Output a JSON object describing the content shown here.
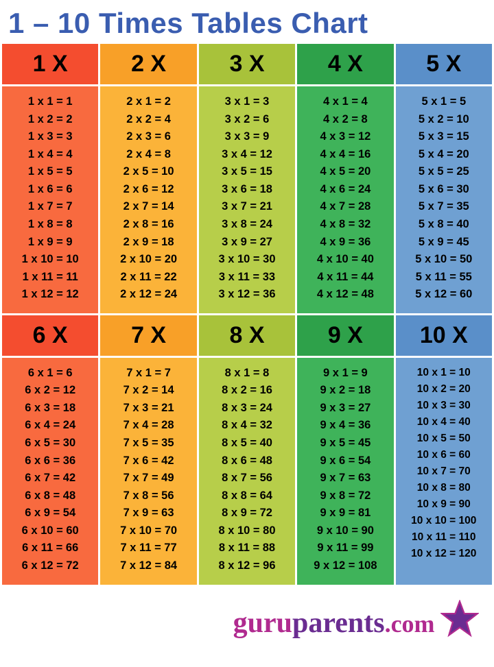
{
  "title": "1 – 10 Times Tables Chart",
  "footer": {
    "guru": "guru",
    "parents": "parents",
    "dotcom": ".com"
  },
  "star_colors": {
    "fill": "#6a2c91",
    "stroke": "#b02a8f"
  },
  "gap": 3,
  "columns": [
    {
      "header": "1 X",
      "header_bg": "#f44d2f",
      "body_bg": "#f86a3f",
      "cell_fontsize": 16.5,
      "rows": [
        "1 x 1 = 1",
        "1 x 2 = 2",
        "1 x 3 = 3",
        "1 x 4 = 4",
        "1 x 5 = 5",
        "1 x 6 = 6",
        "1 x 7 = 7",
        "1 x 8 = 8",
        "1 x 9 = 9",
        "1 x 10 = 10",
        "1 x 11 = 11",
        "1 x 12 = 12"
      ]
    },
    {
      "header": "2 X",
      "header_bg": "#f8a028",
      "body_bg": "#fbb339",
      "cell_fontsize": 16.5,
      "rows": [
        "2 x 1 = 2",
        "2 x 2 = 4",
        "2 x 3 = 6",
        "2 x 4 = 8",
        "2 x 5 = 10",
        "2 x 6 = 12",
        "2 x 7 = 14",
        "2 x 8 = 16",
        "2 x 9 = 18",
        "2 x 10 = 20",
        "2 x 11 = 22",
        "2 x 12 = 24"
      ]
    },
    {
      "header": "3 X",
      "header_bg": "#a8c23a",
      "body_bg": "#b7ce4a",
      "cell_fontsize": 16.5,
      "rows": [
        "3 x 1 = 3",
        "3 x 2 = 6",
        "3 x 3 = 9",
        "3 x 4 = 12",
        "3 x 5 = 15",
        "3 x 6 = 18",
        "3 x 7 = 21",
        "3 x 8 = 24",
        "3 x 9 = 27",
        "3 x 10 = 30",
        "3 x 11 = 33",
        "3 x 12 = 36"
      ]
    },
    {
      "header": "4 X",
      "header_bg": "#2ea14a",
      "body_bg": "#3fb35a",
      "cell_fontsize": 16.5,
      "rows": [
        "4 x 1 = 4",
        "4 x 2 = 8",
        "4 x 3 = 12",
        "4 x 4 = 16",
        "4 x 5 = 20",
        "4 x 6 = 24",
        "4 x 7 = 28",
        "4 x 8 = 32",
        "4 x 9 = 36",
        "4 x 10 = 40",
        "4 x 11 = 44",
        "4 x 12 = 48"
      ]
    },
    {
      "header": "5 X",
      "header_bg": "#5a8fc9",
      "body_bg": "#6fa0d2",
      "cell_fontsize": 16.5,
      "rows": [
        "5 x 1 = 5",
        "5 x 2 = 10",
        "5 x 3 = 15",
        "5 x 4 = 20",
        "5 x 5 = 25",
        "5 x 6 = 30",
        "5 x 7 = 35",
        "5 x 8 = 40",
        "5 x 9 = 45",
        "5 x 10 = 50",
        "5 x 11 = 55",
        "5 x 12 = 60"
      ]
    },
    {
      "header": "6 X",
      "header_bg": "#f44d2f",
      "body_bg": "#f86a3f",
      "cell_fontsize": 16.5,
      "rows": [
        "6 x 1 = 6",
        "6 x 2 = 12",
        "6 x 3 = 18",
        "6 x 4 = 24",
        "6 x 5 = 30",
        "6 x 6 = 36",
        "6 x 7 = 42",
        "6 x 8 = 48",
        "6 x 9 = 54",
        "6 x 10 = 60",
        "6 x 11 = 66",
        "6 x 12 = 72"
      ]
    },
    {
      "header": "7 X",
      "header_bg": "#f8a028",
      "body_bg": "#fbb339",
      "cell_fontsize": 16.5,
      "rows": [
        "7 x 1 = 7",
        "7 x 2 = 14",
        "7 x 3 = 21",
        "7 x 4 = 28",
        "7 x 5 = 35",
        "7 x 6 = 42",
        "7 x 7 = 49",
        "7 x 8 = 56",
        "7 x 9 = 63",
        "7 x 10 = 70",
        "7 x 11 = 77",
        "7 x 12 = 84"
      ]
    },
    {
      "header": "8 X",
      "header_bg": "#a8c23a",
      "body_bg": "#b7ce4a",
      "cell_fontsize": 16.5,
      "rows": [
        "8 x 1 = 8",
        "8 x 2 = 16",
        "8 x 3 = 24",
        "8 x 4 = 32",
        "8 x 5 = 40",
        "8 x 6 = 48",
        "8 x 7 = 56",
        "8 x 8 = 64",
        "8 x 9 = 72",
        "8 x 10 = 80",
        "8 x 11 = 88",
        "8 x 12 = 96"
      ]
    },
    {
      "header": "9 X",
      "header_bg": "#2ea14a",
      "body_bg": "#3fb35a",
      "cell_fontsize": 16.5,
      "rows": [
        "9 x 1 = 9",
        "9 x 2 = 18",
        "9 x 3 = 27",
        "9 x 4 = 36",
        "9 x 5 = 45",
        "9 x 6 = 54",
        "9 x 7 = 63",
        "9 x 8 = 72",
        "9 x 9 = 81",
        "9 x 10 = 90",
        "9 x 11 = 99",
        "9 x 12 = 108"
      ]
    },
    {
      "header": "10 X",
      "header_bg": "#5a8fc9",
      "body_bg": "#6fa0d2",
      "cell_fontsize": 15.5,
      "rows": [
        "10 x 1 = 10",
        "10 x 2 = 20",
        "10 x 3 = 30",
        "10 x 4 = 40",
        "10 x 5 = 50",
        "10 x 6 = 60",
        "10 x 7 = 70",
        "10 x 8 = 80",
        "10 x 9 = 90",
        "10 x 10 = 100",
        "10 x 11 = 110",
        "10 x 12 = 120"
      ]
    }
  ]
}
